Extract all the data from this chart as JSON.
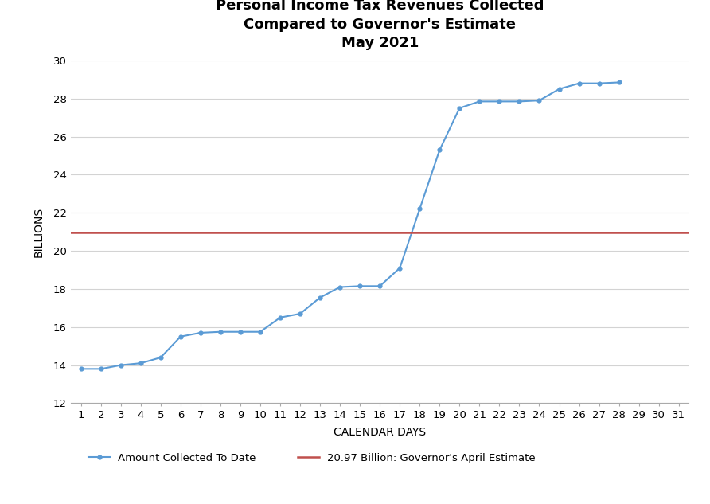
{
  "title": "Personal Income Tax Revenues Collected\nCompared to Governor's Estimate\nMay 2021",
  "xlabel": "CALENDAR DAYS",
  "ylabel": "BILLIONS",
  "days": [
    1,
    2,
    3,
    4,
    5,
    6,
    7,
    8,
    9,
    10,
    11,
    12,
    13,
    14,
    15,
    16,
    17,
    18,
    19,
    20,
    21,
    22,
    23,
    24,
    25,
    26,
    27,
    28
  ],
  "values": [
    13.8,
    13.8,
    14.0,
    14.1,
    14.4,
    15.5,
    15.7,
    15.75,
    15.75,
    15.75,
    16.5,
    16.7,
    17.55,
    18.1,
    18.15,
    18.15,
    19.1,
    22.2,
    25.3,
    27.5,
    27.85,
    27.85,
    27.85,
    27.9,
    28.5,
    28.8,
    28.8,
    28.85
  ],
  "governor_estimate": 20.97,
  "line_color": "#5B9BD5",
  "estimate_color": "#C0504D",
  "marker_style": "o",
  "marker_size": 3.5,
  "ylim": [
    12,
    30
  ],
  "yticks": [
    12,
    14,
    16,
    18,
    20,
    22,
    24,
    26,
    28,
    30
  ],
  "xlim_min": 0.5,
  "xlim_max": 31.5,
  "xticks": [
    1,
    2,
    3,
    4,
    5,
    6,
    7,
    8,
    9,
    10,
    11,
    12,
    13,
    14,
    15,
    16,
    17,
    18,
    19,
    20,
    21,
    22,
    23,
    24,
    25,
    26,
    27,
    28,
    29,
    30,
    31
  ],
  "legend_collected": "Amount Collected To Date",
  "legend_estimate": "20.97 Billion: Governor's April Estimate",
  "grid_color": "#D3D3D3",
  "background_color": "#FFFFFF",
  "title_fontsize": 13,
  "axis_label_fontsize": 10,
  "tick_fontsize": 9.5,
  "legend_fontsize": 9.5
}
